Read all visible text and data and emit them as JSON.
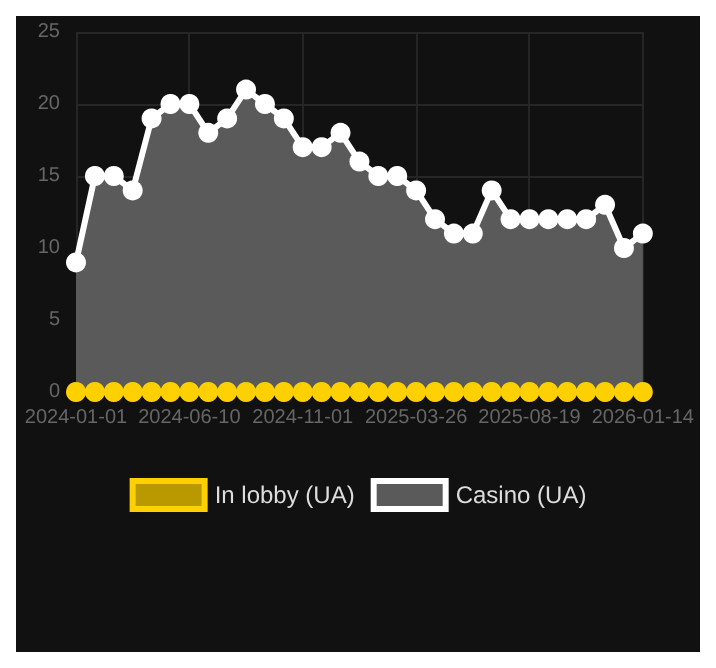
{
  "chart_data": {
    "type": "area",
    "categories": [
      "2024-01-01",
      null,
      null,
      null,
      null,
      null,
      "2024-06-10",
      null,
      null,
      null,
      null,
      null,
      "2024-11-01",
      null,
      null,
      null,
      null,
      null,
      "2025-03-26",
      null,
      null,
      null,
      null,
      null,
      "2025-08-19",
      null,
      null,
      null,
      null,
      null,
      "2026-01-14"
    ],
    "series": [
      {
        "name": "In lobby (UA)",
        "type": "line",
        "color": "#ffd000",
        "values": [
          0,
          0,
          0,
          0,
          0,
          0,
          0,
          0,
          0,
          0,
          0,
          0,
          0,
          0,
          0,
          0,
          0,
          0,
          0,
          0,
          0,
          0,
          0,
          0,
          0,
          0,
          0,
          0,
          0,
          0,
          0
        ]
      },
      {
        "name": "Casino (UA)",
        "color": "#ffffff",
        "values": [
          9,
          15,
          15,
          14,
          19,
          20,
          20,
          18,
          19,
          21,
          20,
          19,
          17,
          17,
          18,
          16,
          15,
          15,
          14,
          12,
          11,
          11,
          14,
          12,
          12,
          12,
          12,
          12,
          13,
          10,
          11
        ]
      }
    ],
    "ylim": [
      0,
      25
    ],
    "yticks": [
      0,
      5,
      10,
      15,
      20,
      25
    ],
    "grid": true,
    "legend": "bottom",
    "marker": "circle",
    "line_style": "solid"
  }
}
